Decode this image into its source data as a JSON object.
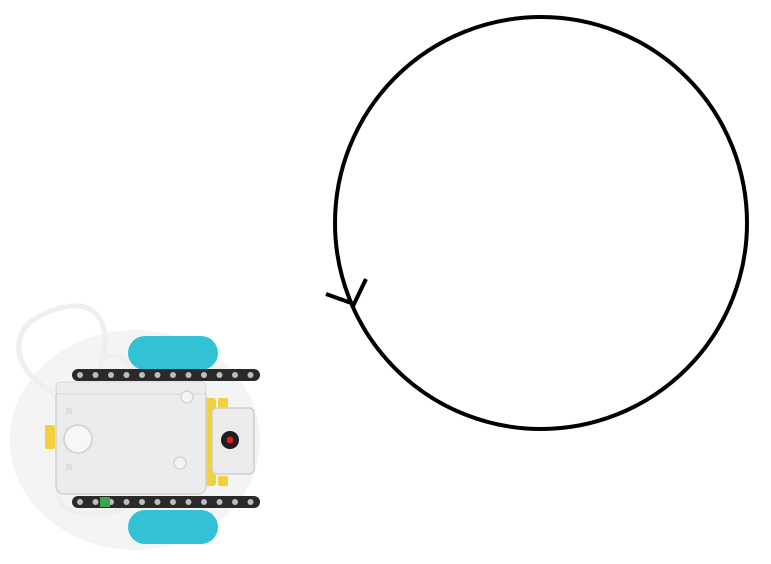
{
  "diagram": {
    "path_shape": "circle",
    "path_direction": "counter-clockwise",
    "path_stroke_color": "#000000",
    "robot": {
      "hub_color": "#ececec",
      "wheel_color": "#33c1d6",
      "beam_color": "#2a2a2a",
      "accent_color": "#f2d23a",
      "cable_color": "#efefef",
      "sensor_marker_color": "#e01e1e"
    }
  }
}
